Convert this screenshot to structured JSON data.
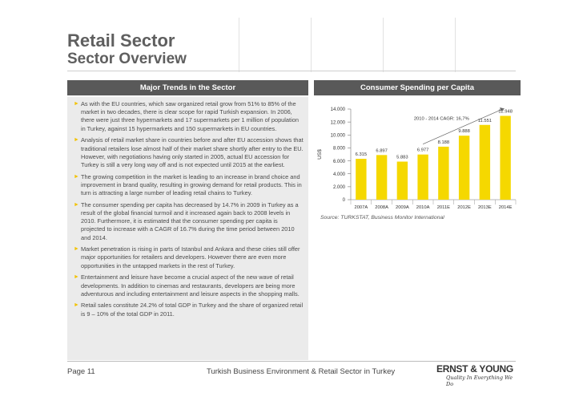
{
  "header": {
    "title": "Retail Sector",
    "subtitle": "Sector Overview"
  },
  "left_panel": {
    "heading": "Major Trends in the Sector",
    "bullets": [
      "As with the EU countries, which saw organized retail grow from 51% to 85% of the market in two decades, there is clear scope for rapid Turkish expansion. In 2006, there were just three hypermarkets and 17 supermarkets per 1 million of population in Turkey, against 15 hypermarkets and 150 supermarkets in EU countries.",
      "Analysis of retail market share in countries before and after EU accession shows that traditional retailers lose almost half of their market share shortly after entry to the EU. However, with negotiations having only started in 2005, actual EU accession for Turkey is still a very long way off and is not expected until 2015 at the earliest.",
      "The growing competition in the market is leading to an increase in brand choice and improvement in brand quality, resulting in growing demand for retail products. This in turn is attracting a large number of leading retail chains to Turkey.",
      "The consumer spending per capita has decreased by 14.7% in 2009 in Turkey as a result of the global financial turmoil and it increased again back to 2008 levels in 2010. Furthermore, it is estimated that the consumer spending per capita is projected to increase with a CAGR of 16.7% during the time period between 2010 and 2014.",
      "Market penetration is rising in parts of Istanbul and Ankara and these cities still offer major opportunities for retailers and developers. However there are even more opportunities in the untapped markets in the rest of Turkey.",
      "Entertainment and leisure have become a crucial aspect of the new wave of retail developments. In addition to cinemas and restaurants, developers are being more adventurous and including entertainment and leisure aspects in the shopping malls.",
      "Retail sales constitute 24.2% of total GDP in Turkey and the share of organized retail is 9 – 10% of the total GDP in 2011."
    ]
  },
  "right_panel": {
    "heading": "Consumer Spending per Capita",
    "source": "Source: TURKSTAT, Business Monitor International"
  },
  "chart_data": {
    "type": "bar",
    "title": "",
    "xlabel": "",
    "ylabel": "US$",
    "ylim": [
      0,
      14000
    ],
    "yticks": [
      0,
      2000,
      4000,
      6000,
      8000,
      10000,
      12000,
      14000
    ],
    "ytick_labels": [
      "0",
      "2.000",
      "4.000",
      "6.000",
      "8.000",
      "10.000",
      "12.000",
      "14.000"
    ],
    "categories": [
      "2007A",
      "2008A",
      "2009A",
      "2010A",
      "2011E",
      "2012E",
      "2013E",
      "2014E"
    ],
    "values": [
      6315,
      6897,
      5883,
      6977,
      8188,
      9888,
      11551,
      12948
    ],
    "value_labels": [
      "6.315",
      "6.897",
      "5.883",
      "6.977",
      "8.188",
      "9.888",
      "11.551",
      "12.948"
    ],
    "bar_color": "#f5d800",
    "annotation": "2010 - 2014 CAGR: 16,7%",
    "grid": false,
    "legend": "none"
  },
  "footer": {
    "page": "Page 11",
    "center": "Turkish Business Environment & Retail Sector in Turkey",
    "logo_name": "ERNST & YOUNG",
    "logo_tagline": "Quality In Everything We Do"
  }
}
